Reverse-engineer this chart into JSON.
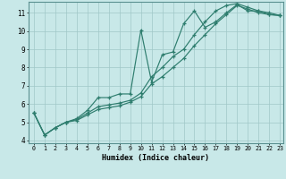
{
  "xlabel": "Humidex (Indice chaleur)",
  "bg_color": "#c8e8e8",
  "line_color": "#2e7d6e",
  "grid_color": "#a0c8c8",
  "xlim": [
    -0.5,
    23.3
  ],
  "ylim": [
    3.85,
    11.6
  ],
  "xticks": [
    0,
    1,
    2,
    3,
    4,
    5,
    6,
    7,
    8,
    9,
    10,
    11,
    12,
    13,
    14,
    15,
    16,
    17,
    18,
    19,
    20,
    21,
    22,
    23
  ],
  "yticks": [
    4,
    5,
    6,
    7,
    8,
    9,
    10,
    11
  ],
  "series": [
    [
      5.5,
      4.3,
      4.7,
      5.0,
      5.2,
      5.65,
      6.35,
      6.35,
      6.55,
      6.55,
      10.05,
      7.2,
      8.7,
      8.85,
      10.4,
      11.1,
      10.2,
      10.5,
      11.0,
      11.45,
      11.1,
      11.1,
      10.9,
      10.85
    ],
    [
      5.5,
      4.3,
      4.7,
      5.0,
      5.15,
      5.5,
      5.85,
      5.95,
      6.05,
      6.2,
      6.6,
      7.5,
      8.0,
      8.6,
      9.0,
      9.8,
      10.5,
      11.1,
      11.4,
      11.5,
      11.3,
      11.1,
      11.0,
      10.85
    ],
    [
      5.5,
      4.3,
      4.7,
      5.0,
      5.1,
      5.4,
      5.7,
      5.8,
      5.9,
      6.1,
      6.4,
      7.1,
      7.5,
      8.0,
      8.5,
      9.2,
      9.8,
      10.4,
      10.9,
      11.4,
      11.2,
      11.0,
      10.9,
      10.85
    ]
  ]
}
